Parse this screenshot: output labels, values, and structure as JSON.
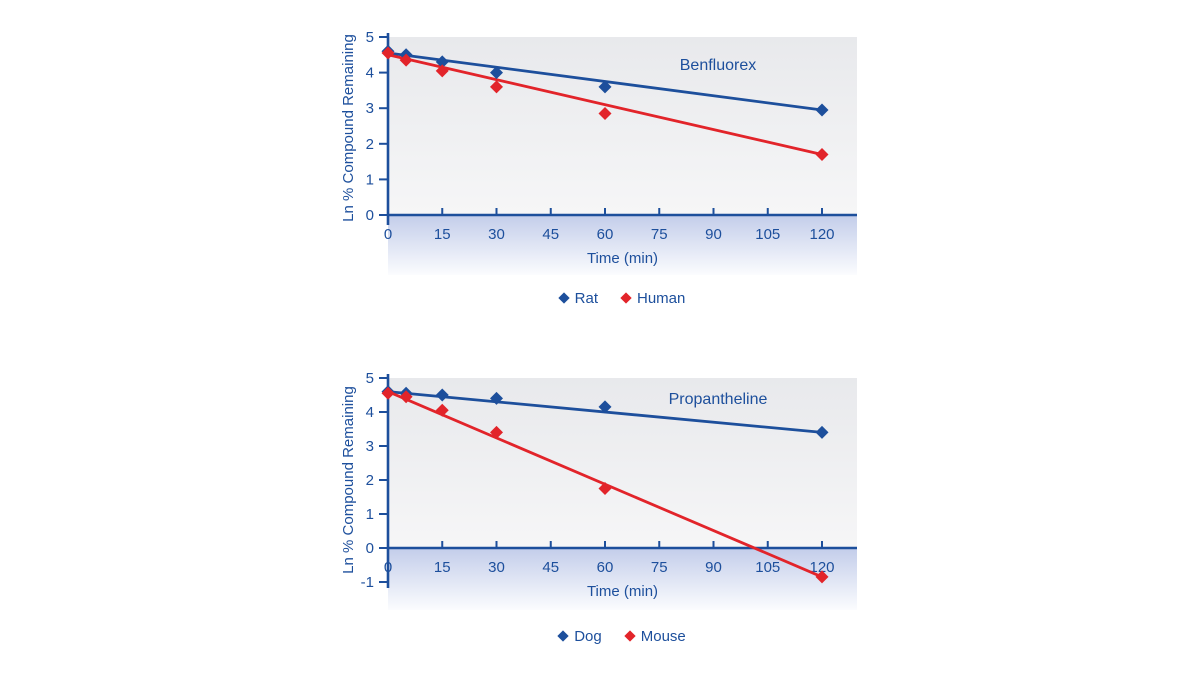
{
  "colors": {
    "blue": "#1d4f9c",
    "red": "#e2242a",
    "plot_bg_top": "#e8e9ec",
    "plot_bg_bottom": "#f6f6f7",
    "band_top": "#c3cdea",
    "band_bottom": "#fbfcfe"
  },
  "chart_data": [
    {
      "type": "scatter",
      "title": "Benfluorex",
      "xlabel": "Time (min)",
      "ylabel": "Ln % Compound Remaining",
      "xlim": [
        0,
        130
      ],
      "ylim": [
        0,
        5
      ],
      "x_ticks": [
        0,
        15,
        30,
        45,
        60,
        75,
        90,
        105,
        120
      ],
      "y_ticks": [
        0,
        1,
        2,
        3,
        4,
        5
      ],
      "grid": false,
      "legend_position": "bottom-center",
      "series": [
        {
          "name": "Rat",
          "color_key": "blue",
          "x": [
            0,
            5,
            15,
            30,
            60,
            120
          ],
          "y": [
            4.6,
            4.5,
            4.3,
            4.0,
            3.6,
            2.95
          ],
          "trend_x": [
            0,
            120
          ],
          "trend_y": [
            4.55,
            2.95
          ]
        },
        {
          "name": "Human",
          "color_key": "red",
          "x": [
            0,
            5,
            15,
            30,
            60,
            120
          ],
          "y": [
            4.55,
            4.35,
            4.05,
            3.6,
            2.85,
            1.7
          ],
          "trend_x": [
            0,
            120
          ],
          "trend_y": [
            4.5,
            1.7
          ]
        }
      ]
    },
    {
      "type": "scatter",
      "title": "Propantheline",
      "xlabel": "Time (min)",
      "ylabel": "Ln % Compound Remaining",
      "xlim": [
        0,
        130
      ],
      "ylim": [
        -1,
        5
      ],
      "x_ticks": [
        0,
        15,
        30,
        45,
        60,
        75,
        90,
        105,
        120
      ],
      "y_ticks": [
        -1,
        0,
        1,
        2,
        3,
        4,
        5
      ],
      "grid": false,
      "legend_position": "bottom-center",
      "series": [
        {
          "name": "Dog",
          "color_key": "blue",
          "x": [
            0,
            5,
            15,
            30,
            60,
            120
          ],
          "y": [
            4.6,
            4.55,
            4.5,
            4.4,
            4.15,
            3.4
          ],
          "trend_x": [
            0,
            120
          ],
          "trend_y": [
            4.6,
            3.4
          ]
        },
        {
          "name": "Mouse",
          "color_key": "red",
          "x": [
            0,
            5,
            15,
            30,
            60,
            120
          ],
          "y": [
            4.55,
            4.45,
            4.05,
            3.4,
            1.75,
            -0.85
          ],
          "trend_x": [
            0,
            120
          ],
          "trend_y": [
            4.6,
            -0.85
          ]
        }
      ]
    }
  ]
}
